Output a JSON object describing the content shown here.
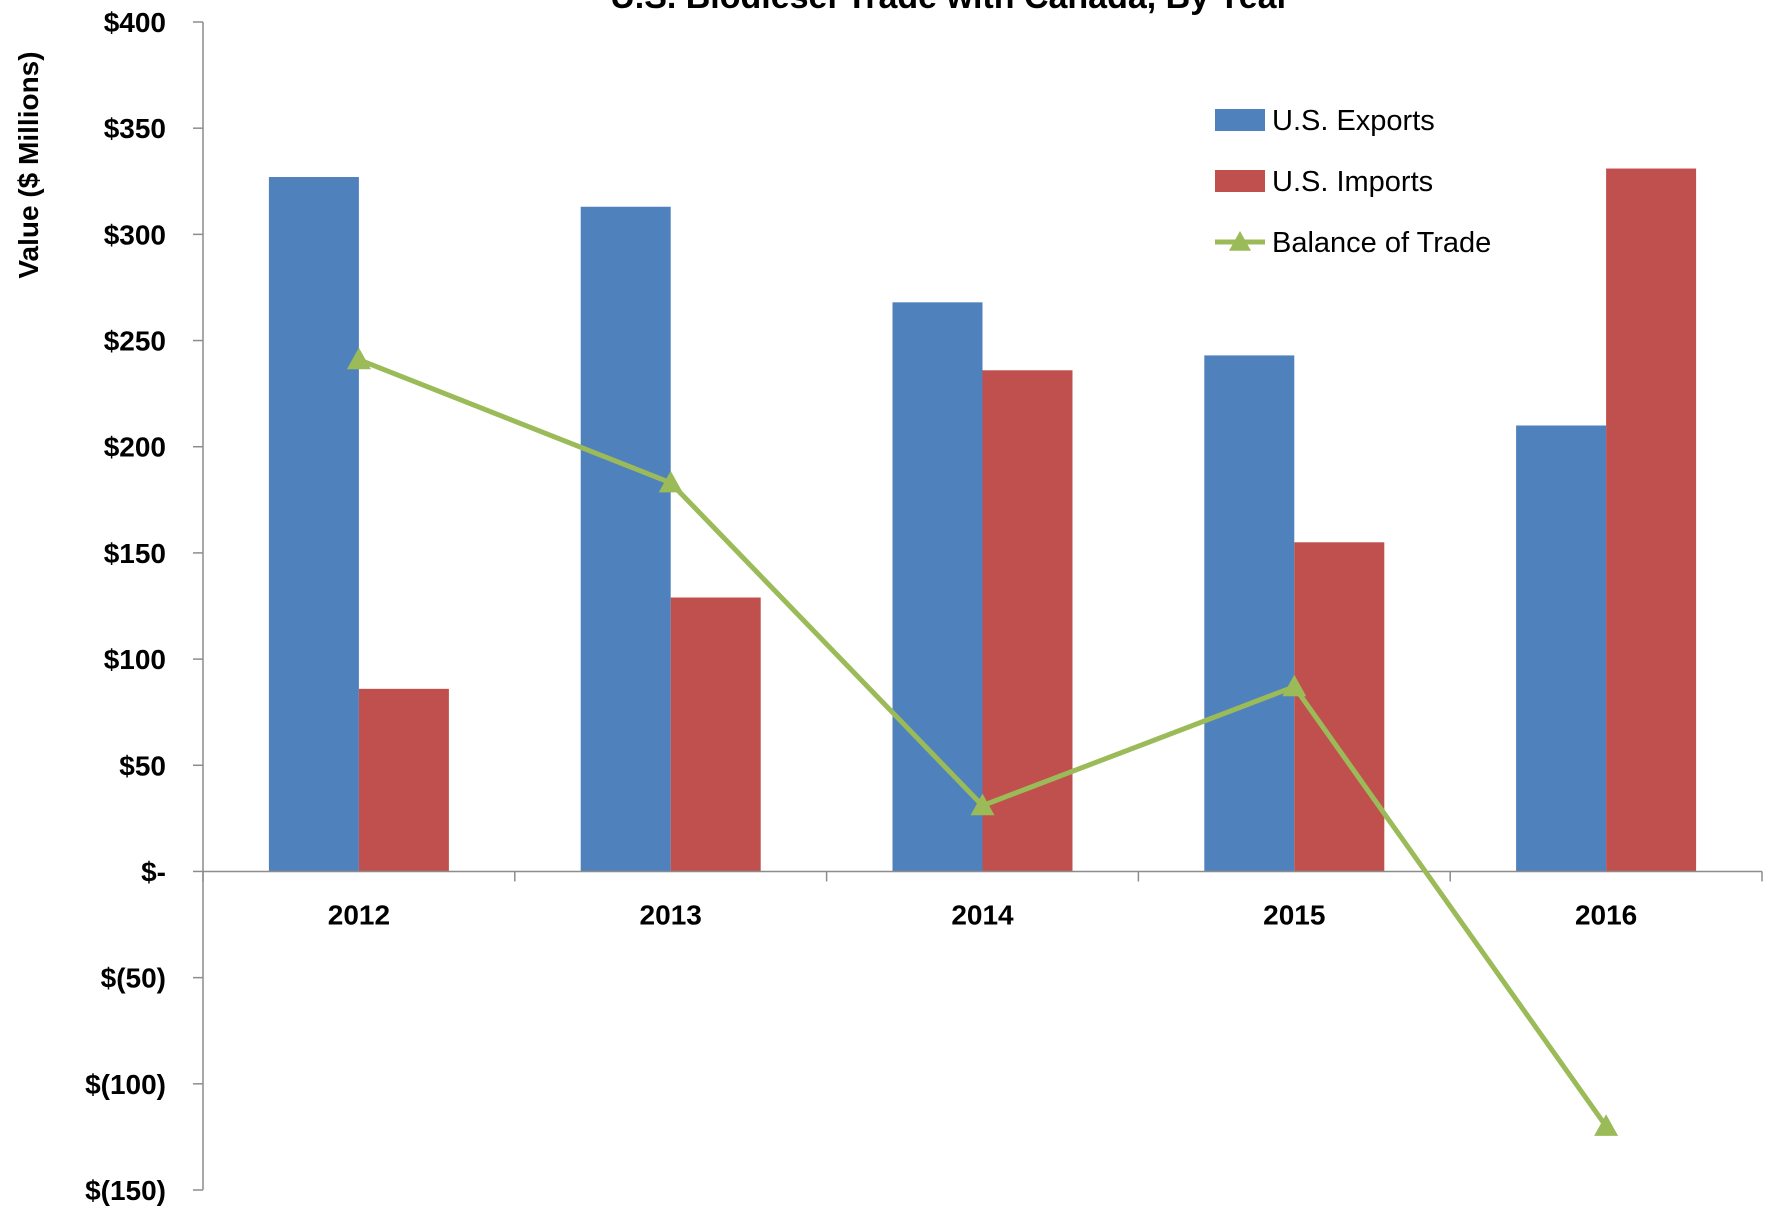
{
  "chart_data": {
    "type": "bar",
    "title": "U.S. Biodiesel Trade with Canada, By Year",
    "xlabel": "",
    "ylabel": "Value ($ Millions)",
    "ylim": [
      -150,
      400
    ],
    "yticks": [
      400,
      350,
      300,
      250,
      200,
      150,
      100,
      50,
      0,
      -50,
      -100,
      -150
    ],
    "ytick_labels": [
      "$400",
      "$350",
      "$300",
      "$250",
      "$200",
      "$150",
      "$100",
      "$50",
      "$-",
      "$(50)",
      "$(100)",
      "$(150)"
    ],
    "categories": [
      "2012",
      "2013",
      "2014",
      "2015",
      "2016"
    ],
    "series": [
      {
        "name": "U.S. Exports",
        "kind": "bar",
        "color": "#4F81BD",
        "values": [
          327,
          313,
          268,
          243,
          210
        ]
      },
      {
        "name": "U.S. Imports",
        "kind": "bar",
        "color": "#C0504D",
        "values": [
          86,
          129,
          236,
          155,
          331
        ]
      },
      {
        "name": "Balance of Trade",
        "kind": "line",
        "marker": "triangle",
        "color": "#9BBB59",
        "values": [
          241,
          183,
          31,
          87,
          -120
        ]
      }
    ],
    "legend_position": "top-right",
    "grid": false
  }
}
